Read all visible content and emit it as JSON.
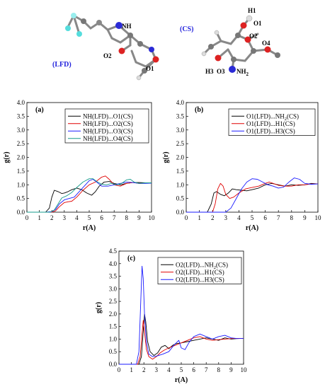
{
  "molecules": {
    "lfd": {
      "name": "(LFD)",
      "atoms": [
        "NH",
        "O2",
        "O1"
      ]
    },
    "cs": {
      "name": "(CS)",
      "atoms": [
        "H1",
        "O1",
        "O2",
        "O4",
        "H3",
        "O3",
        "NH",
        "2"
      ]
    }
  },
  "colors": {
    "black": "#000000",
    "red": "#e00000",
    "blue": "#1a1aff",
    "teal": "#169c8c",
    "mol_label": "#2222dd"
  },
  "chart_data": [
    {
      "id": "a",
      "type": "line",
      "panel_label": "(a)",
      "xlabel": "r(A)",
      "ylabel": "g(r)",
      "xlim": [
        0,
        10
      ],
      "ylim": [
        0,
        4.0
      ],
      "xticks": [
        "0",
        "1",
        "2",
        "3",
        "4",
        "5",
        "6",
        "7",
        "8",
        "9",
        "10"
      ],
      "yticks": [
        "0.0",
        "0.5",
        "1.0",
        "1.5",
        "2.0",
        "2.5",
        "3.0",
        "3.5",
        "4.0"
      ],
      "legend_position": "top-right",
      "series": [
        {
          "name": "NH(LFD)...O1(CS)",
          "color": "#000000",
          "x": [
            0,
            1.5,
            1.8,
            2.0,
            2.2,
            2.5,
            2.8,
            3.0,
            3.3,
            3.6,
            4.0,
            4.4,
            4.8,
            5.2,
            5.5,
            5.8,
            6.2,
            6.6,
            7.0,
            7.5,
            8.0,
            8.5,
            9.0,
            9.5,
            10
          ],
          "y": [
            0,
            0,
            0.15,
            0.55,
            0.8,
            0.75,
            0.68,
            0.7,
            0.75,
            0.82,
            0.88,
            0.82,
            0.7,
            0.62,
            0.75,
            0.95,
            1.1,
            1.12,
            1.05,
            1.0,
            1.05,
            1.08,
            1.08,
            1.07,
            1.07
          ]
        },
        {
          "name": "NH(LFD)...O2(CS)",
          "color": "#e00000",
          "x": [
            0,
            1.5,
            2.0,
            2.3,
            2.6,
            3.0,
            3.3,
            3.6,
            4.0,
            4.5,
            5.0,
            5.5,
            6.0,
            6.3,
            6.6,
            7.0,
            7.5,
            8.0,
            8.5,
            9.0,
            9.5,
            10
          ],
          "y": [
            0,
            0,
            0,
            0.05,
            0.2,
            0.35,
            0.38,
            0.4,
            0.55,
            0.8,
            1.0,
            1.1,
            1.28,
            1.32,
            1.2,
            1.0,
            0.95,
            1.05,
            1.08,
            1.05,
            1.06,
            1.07
          ]
        },
        {
          "name": "NH(LFD)...O3(CS)",
          "color": "#1a1aff",
          "x": [
            0,
            1.5,
            2.0,
            2.3,
            2.6,
            3.0,
            3.4,
            3.8,
            4.2,
            4.6,
            5.0,
            5.3,
            5.6,
            6.0,
            6.5,
            7.0,
            7.5,
            8.0,
            8.5,
            9.0,
            9.5,
            10
          ],
          "y": [
            0,
            0,
            0.02,
            0.1,
            0.3,
            0.45,
            0.5,
            0.55,
            0.75,
            0.95,
            1.15,
            1.2,
            1.1,
            0.95,
            0.95,
            1.0,
            1.05,
            1.1,
            1.08,
            1.05,
            1.05,
            1.06
          ]
        },
        {
          "name": "NH(LFD)...O4(CS)",
          "color": "#169c8c",
          "x": [
            0,
            1.5,
            1.9,
            2.2,
            2.5,
            2.8,
            3.2,
            3.6,
            4.0,
            4.5,
            5.0,
            5.3,
            5.6,
            6.0,
            6.4,
            6.8,
            7.2,
            7.6,
            8.0,
            8.3,
            8.6,
            9.0,
            9.5,
            10
          ],
          "y": [
            0,
            0,
            0,
            0.08,
            0.3,
            0.52,
            0.6,
            0.72,
            0.9,
            1.1,
            1.22,
            1.22,
            1.12,
            1.02,
            1.0,
            1.05,
            1.0,
            1.05,
            1.18,
            1.2,
            1.1,
            1.05,
            1.07,
            1.07
          ]
        }
      ]
    },
    {
      "id": "b",
      "type": "line",
      "panel_label": "(b)",
      "xlabel": "r(A)",
      "ylabel": "g(r)",
      "xlim": [
        0,
        10
      ],
      "ylim": [
        0,
        4.0
      ],
      "xticks": [
        "0",
        "1",
        "2",
        "3",
        "4",
        "5",
        "6",
        "7",
        "8",
        "9",
        "10"
      ],
      "yticks": [
        "0.0",
        "0.5",
        "1.0",
        "1.5",
        "2.0",
        "2.5",
        "3.0",
        "3.5",
        "4.0"
      ],
      "legend_position": "top-right",
      "series": [
        {
          "name": "O1(LFD)...NH",
          "name_sub": "2",
          "name_tail": "(CS)",
          "color": "#000000",
          "x": [
            0,
            1.6,
            1.9,
            2.1,
            2.3,
            2.6,
            2.9,
            3.2,
            3.5,
            3.8,
            4.2,
            4.6,
            5.0,
            5.5,
            6.0,
            6.5,
            7.0,
            7.5,
            8.0,
            8.5,
            9.0,
            9.5,
            10
          ],
          "y": [
            0,
            0,
            0.3,
            0.7,
            0.75,
            0.65,
            0.6,
            0.7,
            0.85,
            0.82,
            0.8,
            0.78,
            0.82,
            0.88,
            1.0,
            1.05,
            1.0,
            0.95,
            1.0,
            0.98,
            1.0,
            1.05,
            1.03
          ]
        },
        {
          "name": "O1(LFD)...H1(CS)",
          "color": "#e00000",
          "x": [
            0,
            2.0,
            2.2,
            2.4,
            2.6,
            2.8,
            3.0,
            3.3,
            3.6,
            4.0,
            4.5,
            5.0,
            5.5,
            6.0,
            6.3,
            6.6,
            7.0,
            7.5,
            8.0,
            8.5,
            9.0,
            9.5,
            10
          ],
          "y": [
            0,
            0,
            0.3,
            0.85,
            1.05,
            0.95,
            0.65,
            0.5,
            0.55,
            0.7,
            0.85,
            0.9,
            0.95,
            1.05,
            1.1,
            1.05,
            0.98,
            0.95,
            0.95,
            1.0,
            1.0,
            1.03,
            1.03
          ]
        },
        {
          "name": "O1(LFD)...H3(CS)",
          "color": "#1a1aff",
          "x": [
            0,
            3.0,
            3.4,
            3.8,
            4.2,
            4.6,
            5.0,
            5.4,
            5.8,
            6.2,
            6.6,
            7.0,
            7.4,
            7.8,
            8.2,
            8.6,
            9.0,
            9.5,
            10
          ],
          "y": [
            0,
            0,
            0.15,
            0.5,
            0.85,
            1.1,
            1.22,
            1.2,
            1.1,
            1.0,
            0.95,
            0.88,
            0.92,
            1.1,
            1.25,
            1.2,
            1.05,
            1.02,
            1.03
          ]
        }
      ]
    },
    {
      "id": "c",
      "type": "line",
      "panel_label": "(c)",
      "xlabel": "r(A)",
      "ylabel": "g(r)",
      "xlim": [
        0,
        10
      ],
      "ylim": [
        0,
        4.5
      ],
      "xticks": [
        "0",
        "1",
        "2",
        "3",
        "4",
        "5",
        "6",
        "7",
        "8",
        "9",
        "10"
      ],
      "yticks": [
        "0.0",
        "0.5",
        "1.0",
        "1.5",
        "2.0",
        "2.5",
        "3.0",
        "3.5",
        "4.0",
        "4.5"
      ],
      "legend_position": "top-right",
      "series": [
        {
          "name": "O2(LFD)...NH",
          "name_sub": "2",
          "name_tail": "(CS)",
          "color": "#000000",
          "x": [
            0,
            1.6,
            1.8,
            1.95,
            2.05,
            2.15,
            2.3,
            2.5,
            2.8,
            3.1,
            3.4,
            3.7,
            4.0,
            4.3,
            4.6,
            5.0,
            5.5,
            6.0,
            6.5,
            7.0,
            7.5,
            8.0,
            8.5,
            9.0,
            9.5,
            10
          ],
          "y": [
            0,
            0,
            0.3,
            1.3,
            2.0,
            1.7,
            0.9,
            0.5,
            0.35,
            0.45,
            0.68,
            0.75,
            0.62,
            0.75,
            0.82,
            0.85,
            0.9,
            0.95,
            1.0,
            1.05,
            1.0,
            0.95,
            1.05,
            1.0,
            1.02,
            1.03
          ]
        },
        {
          "name": "O2(LFD)...H1(CS)",
          "color": "#e00000",
          "x": [
            0,
            1.5,
            1.7,
            1.85,
            1.95,
            2.05,
            2.2,
            2.4,
            2.7,
            3.0,
            3.3,
            3.6,
            4.0,
            4.5,
            5.0,
            5.5,
            6.0,
            6.5,
            7.0,
            7.5,
            8.0,
            8.5,
            9.0,
            9.5,
            10
          ],
          "y": [
            0,
            0,
            0.3,
            1.2,
            1.75,
            1.3,
            0.6,
            0.3,
            0.2,
            0.3,
            0.45,
            0.55,
            0.65,
            0.75,
            0.85,
            0.95,
            1.05,
            1.1,
            1.0,
            0.95,
            0.98,
            1.0,
            1.02,
            1.03,
            1.03
          ]
        },
        {
          "name": "O2(LFD)...H3(CS)",
          "color": "#1a1aff",
          "x": [
            0,
            1.4,
            1.6,
            1.75,
            1.85,
            1.95,
            2.05,
            2.2,
            2.4,
            2.7,
            3.0,
            3.5,
            4.0,
            4.4,
            4.8,
            5.0,
            5.3,
            5.6,
            6.0,
            6.5,
            7.0,
            7.5,
            8.0,
            8.5,
            9.0,
            9.5,
            10
          ],
          "y": [
            0,
            0,
            0.5,
            2.5,
            3.9,
            3.4,
            2.0,
            0.9,
            0.4,
            0.3,
            0.32,
            0.4,
            0.5,
            0.75,
            0.95,
            0.65,
            0.58,
            0.85,
            1.1,
            1.2,
            1.1,
            1.0,
            1.1,
            1.15,
            1.05,
            1.02,
            1.03
          ]
        }
      ]
    }
  ]
}
